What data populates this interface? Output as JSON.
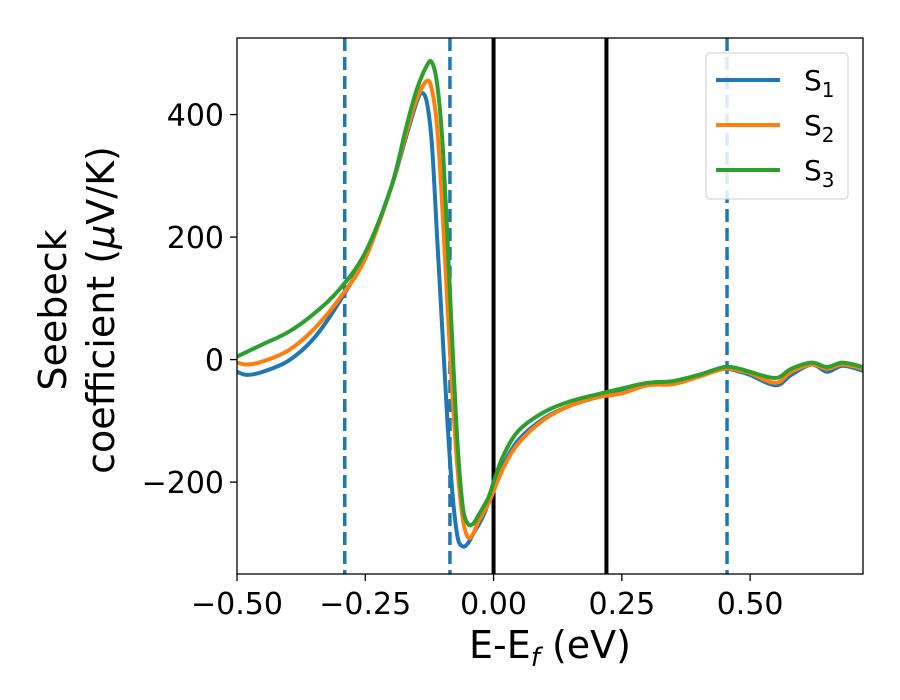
{
  "chart_data": {
    "type": "line",
    "xlabel": {
      "main": "E-E",
      "sub": "f",
      "unit": " (eV)"
    },
    "ylabel": {
      "line1": "Seebeck",
      "line2_pre": "coefficient  (",
      "mu": "μ",
      "line2_post": "V/K)"
    },
    "xlim": [
      -0.5,
      0.72
    ],
    "ylim": [
      -350,
      525
    ],
    "x_ticks": [
      {
        "value": -0.5,
        "label": "−0.50"
      },
      {
        "value": -0.25,
        "label": "−0.25"
      },
      {
        "value": 0.0,
        "label": "0.00"
      },
      {
        "value": 0.25,
        "label": "0.25"
      },
      {
        "value": 0.5,
        "label": "0.50"
      }
    ],
    "y_ticks": [
      {
        "value": 400,
        "label": "400"
      },
      {
        "value": 200,
        "label": "200"
      },
      {
        "value": 0,
        "label": "0"
      },
      {
        "value": -200,
        "label": "−200"
      }
    ],
    "grid": false,
    "legend_position": "top-right",
    "vertical_lines": [
      {
        "x": -0.29,
        "style": "dashed",
        "color": "#1f77b4"
      },
      {
        "x": -0.085,
        "style": "dashed",
        "color": "#1f77b4"
      },
      {
        "x": 0.0,
        "style": "solid",
        "color": "#000000"
      },
      {
        "x": 0.22,
        "style": "solid",
        "color": "#000000"
      },
      {
        "x": 0.455,
        "style": "dashed",
        "color": "#1f77b4"
      }
    ],
    "series": [
      {
        "name": "S",
        "sub": "1",
        "color": "#1f77b4",
        "points": [
          [
            -0.5,
            -20
          ],
          [
            -0.48,
            -25
          ],
          [
            -0.45,
            -20
          ],
          [
            -0.4,
            -2
          ],
          [
            -0.35,
            35
          ],
          [
            -0.3,
            95
          ],
          [
            -0.25,
            170
          ],
          [
            -0.2,
            280
          ],
          [
            -0.17,
            365
          ],
          [
            -0.15,
            420
          ],
          [
            -0.14,
            435
          ],
          [
            -0.13,
            420
          ],
          [
            -0.12,
            350
          ],
          [
            -0.11,
            200
          ],
          [
            -0.1,
            50
          ],
          [
            -0.09,
            -100
          ],
          [
            -0.08,
            -220
          ],
          [
            -0.07,
            -290
          ],
          [
            -0.06,
            -305
          ],
          [
            -0.05,
            -300
          ],
          [
            -0.04,
            -285
          ],
          [
            -0.02,
            -255
          ],
          [
            0.0,
            -210
          ],
          [
            0.02,
            -170
          ],
          [
            0.05,
            -130
          ],
          [
            0.1,
            -95
          ],
          [
            0.15,
            -75
          ],
          [
            0.2,
            -62
          ],
          [
            0.25,
            -52
          ],
          [
            0.3,
            -40
          ],
          [
            0.35,
            -38
          ],
          [
            0.4,
            -25
          ],
          [
            0.45,
            -15
          ],
          [
            0.48,
            -20
          ],
          [
            0.5,
            -25
          ],
          [
            0.55,
            -42
          ],
          [
            0.58,
            -25
          ],
          [
            0.62,
            -8
          ],
          [
            0.65,
            -20
          ],
          [
            0.68,
            -10
          ],
          [
            0.72,
            -18
          ]
        ]
      },
      {
        "name": "S",
        "sub": "2",
        "color": "#ff7f0e",
        "points": [
          [
            -0.5,
            -5
          ],
          [
            -0.48,
            -8
          ],
          [
            -0.45,
            -3
          ],
          [
            -0.4,
            15
          ],
          [
            -0.35,
            50
          ],
          [
            -0.3,
            100
          ],
          [
            -0.25,
            165
          ],
          [
            -0.2,
            280
          ],
          [
            -0.17,
            370
          ],
          [
            -0.15,
            425
          ],
          [
            -0.13,
            455
          ],
          [
            -0.12,
            440
          ],
          [
            -0.11,
            380
          ],
          [
            -0.1,
            250
          ],
          [
            -0.09,
            90
          ],
          [
            -0.08,
            -60
          ],
          [
            -0.07,
            -180
          ],
          [
            -0.06,
            -260
          ],
          [
            -0.05,
            -290
          ],
          [
            -0.04,
            -285
          ],
          [
            -0.03,
            -265
          ],
          [
            -0.01,
            -235
          ],
          [
            0.0,
            -215
          ],
          [
            0.02,
            -175
          ],
          [
            0.05,
            -135
          ],
          [
            0.1,
            -97
          ],
          [
            0.15,
            -75
          ],
          [
            0.2,
            -62
          ],
          [
            0.25,
            -55
          ],
          [
            0.3,
            -42
          ],
          [
            0.35,
            -40
          ],
          [
            0.4,
            -28
          ],
          [
            0.45,
            -15
          ],
          [
            0.48,
            -18
          ],
          [
            0.5,
            -22
          ],
          [
            0.55,
            -38
          ],
          [
            0.58,
            -20
          ],
          [
            0.62,
            -8
          ],
          [
            0.65,
            -15
          ],
          [
            0.68,
            -8
          ],
          [
            0.72,
            -15
          ]
        ]
      },
      {
        "name": "S",
        "sub": "3",
        "color": "#2ca02c",
        "points": [
          [
            -0.5,
            5
          ],
          [
            -0.45,
            25
          ],
          [
            -0.4,
            45
          ],
          [
            -0.35,
            75
          ],
          [
            -0.3,
            115
          ],
          [
            -0.25,
            175
          ],
          [
            -0.2,
            280
          ],
          [
            -0.17,
            380
          ],
          [
            -0.15,
            440
          ],
          [
            -0.13,
            480
          ],
          [
            -0.12,
            485
          ],
          [
            -0.11,
            450
          ],
          [
            -0.1,
            360
          ],
          [
            -0.09,
            200
          ],
          [
            -0.08,
            20
          ],
          [
            -0.07,
            -140
          ],
          [
            -0.06,
            -240
          ],
          [
            -0.05,
            -268
          ],
          [
            -0.04,
            -268
          ],
          [
            -0.03,
            -255
          ],
          [
            -0.01,
            -225
          ],
          [
            0.0,
            -200
          ],
          [
            0.02,
            -155
          ],
          [
            0.05,
            -115
          ],
          [
            0.1,
            -85
          ],
          [
            0.15,
            -68
          ],
          [
            0.2,
            -57
          ],
          [
            0.25,
            -47
          ],
          [
            0.3,
            -38
          ],
          [
            0.35,
            -35
          ],
          [
            0.4,
            -25
          ],
          [
            0.45,
            -12
          ],
          [
            0.48,
            -15
          ],
          [
            0.5,
            -20
          ],
          [
            0.55,
            -30
          ],
          [
            0.58,
            -15
          ],
          [
            0.62,
            -5
          ],
          [
            0.65,
            -12
          ],
          [
            0.68,
            -5
          ],
          [
            0.72,
            -12
          ]
        ]
      }
    ]
  }
}
